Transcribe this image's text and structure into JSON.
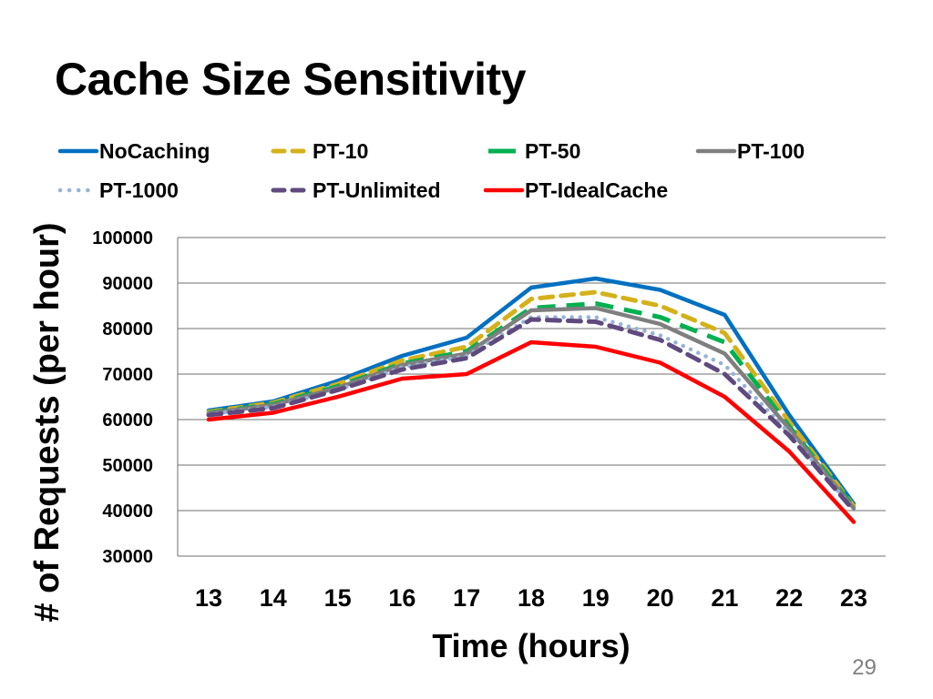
{
  "slide": {
    "title": "Cache Size Sensitivity",
    "page_number": "29"
  },
  "chart_data": {
    "type": "line",
    "title": "",
    "xlabel": "Time (hours)",
    "ylabel": "# of Requests (per hour)",
    "x": [
      13,
      14,
      15,
      16,
      17,
      18,
      19,
      20,
      21,
      22,
      23
    ],
    "ylim": [
      30000,
      100000
    ],
    "yticks": [
      100000,
      90000,
      80000,
      70000,
      60000,
      50000,
      40000,
      30000
    ],
    "grid": true,
    "legend_position": "top",
    "series": [
      {
        "name": "NoCaching",
        "color": "#0070C0",
        "style": "solid",
        "values": [
          62000,
          64000,
          68500,
          74000,
          78000,
          89000,
          91000,
          88500,
          83000,
          61000,
          41500
        ]
      },
      {
        "name": "PT-10",
        "color": "#D4B11A",
        "style": "dash",
        "values": [
          61700,
          63700,
          67800,
          73000,
          76000,
          86500,
          88000,
          85000,
          79000,
          59500,
          41000
        ]
      },
      {
        "name": "PT-50",
        "color": "#00B050",
        "style": "dash-long",
        "values": [
          61500,
          63400,
          67300,
          72300,
          75000,
          84500,
          85500,
          82500,
          77000,
          58500,
          40800
        ]
      },
      {
        "name": "PT-100",
        "color": "#7F7F7F",
        "style": "solid",
        "values": [
          61400,
          63200,
          67000,
          72000,
          74500,
          84000,
          84500,
          81000,
          74500,
          58000,
          40500
        ]
      },
      {
        "name": "PT-1000",
        "color": "#95B3D7",
        "style": "dot",
        "values": [
          61200,
          62800,
          66500,
          71500,
          74000,
          82500,
          82500,
          78500,
          72000,
          57000,
          40200
        ]
      },
      {
        "name": "PT-Unlimited",
        "color": "#5F4A7E",
        "style": "dash",
        "values": [
          61000,
          62500,
          66500,
          71000,
          73500,
          82000,
          81500,
          77500,
          70000,
          56500,
          40000
        ]
      },
      {
        "name": "PT-IdealCache",
        "color": "#FF0000",
        "style": "solid",
        "values": [
          60000,
          61500,
          65000,
          69000,
          70000,
          77000,
          76000,
          72500,
          65000,
          53000,
          37500
        ]
      }
    ]
  }
}
